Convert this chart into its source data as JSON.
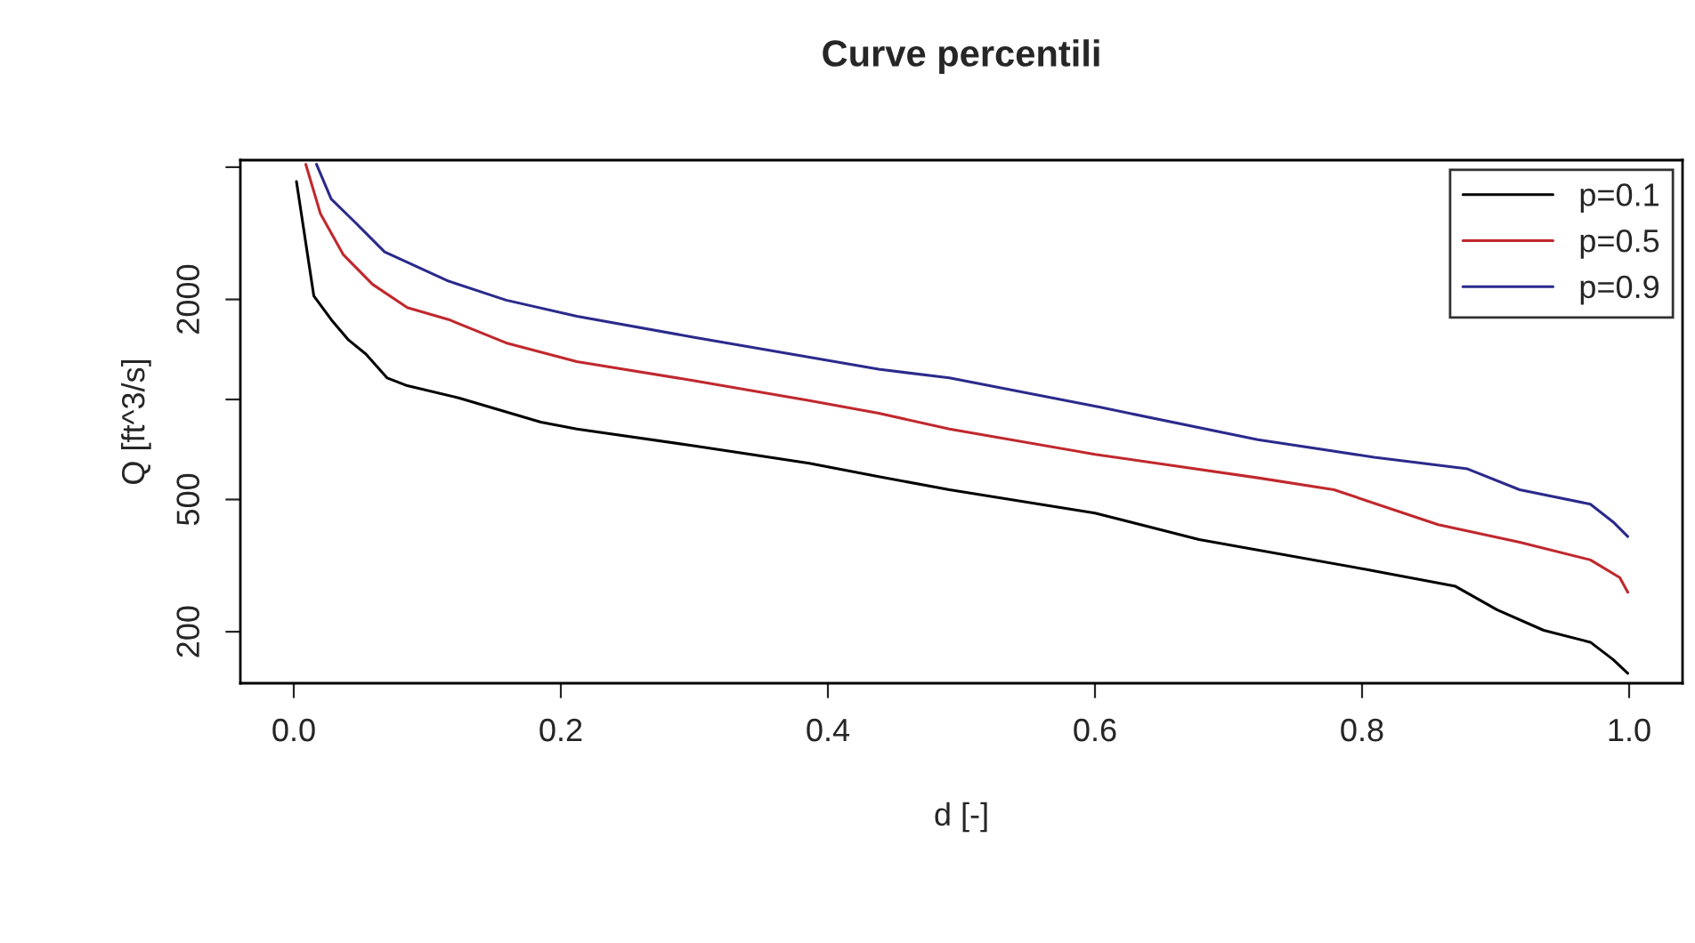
{
  "chart_data": {
    "type": "line",
    "title": "Curve percentili",
    "xlabel": "d [-]",
    "ylabel": "Q [ft^3/s]",
    "log": "y",
    "xlim": [
      -0.04,
      1.04
    ],
    "xticks": [
      {
        "value": 0,
        "label": "0.0"
      },
      0.2,
      0.4,
      0.6,
      0.8,
      {
        "value": 1,
        "label": "1.0"
      }
    ],
    "ylim": [
      140,
      5250
    ],
    "yticks": [
      200,
      500,
      {
        "value": 1000,
        "label": null
      },
      2000,
      {
        "value": 5000,
        "label": null
      }
    ],
    "grid": false,
    "legend": "top right",
    "marker": "none",
    "line_style": "solid",
    "series": [
      {
        "name": "p=0.1",
        "color": "#000000",
        "x": [
          0.002,
          0.007,
          0.015,
          0.028,
          0.041,
          0.054,
          0.07,
          0.085,
          0.124,
          0.185,
          0.212,
          0.299,
          0.386,
          0.438,
          0.491,
          0.6,
          0.678,
          0.801,
          0.87,
          0.901,
          0.936,
          0.971,
          0.988,
          0.999
        ],
        "values": [
          4530,
          3340,
          2050,
          1740,
          1510,
          1370,
          1160,
          1100,
          1010,
          855,
          815,
          726,
          643,
          586,
          535,
          455,
          379,
          309,
          274,
          233,
          202,
          186,
          165,
          150
        ]
      },
      {
        "name": "p=0.5",
        "color": "#c0282d",
        "x": [
          0.009,
          0.02,
          0.037,
          0.059,
          0.085,
          0.116,
          0.159,
          0.212,
          0.299,
          0.386,
          0.438,
          0.491,
          0.6,
          0.722,
          0.779,
          0.857,
          0.918,
          0.971,
          0.993,
          0.999
        ],
        "values": [
          5100,
          3620,
          2730,
          2220,
          1890,
          1740,
          1480,
          1300,
          1140,
          993,
          909,
          815,
          684,
          581,
          535,
          420,
          372,
          329,
          291,
          263
        ]
      },
      {
        "name": "p=0.9",
        "color": "#2a2a8c",
        "x": [
          0.017,
          0.028,
          0.046,
          0.068,
          0.116,
          0.159,
          0.212,
          0.299,
          0.386,
          0.438,
          0.491,
          0.604,
          0.722,
          0.809,
          0.879,
          0.918,
          0.971,
          0.988,
          0.999
        ],
        "values": [
          5100,
          4010,
          3410,
          2780,
          2270,
          1990,
          1780,
          1540,
          1340,
          1233,
          1161,
          947,
          757,
          670,
          618,
          535,
          484,
          428,
          387
        ]
      }
    ]
  }
}
